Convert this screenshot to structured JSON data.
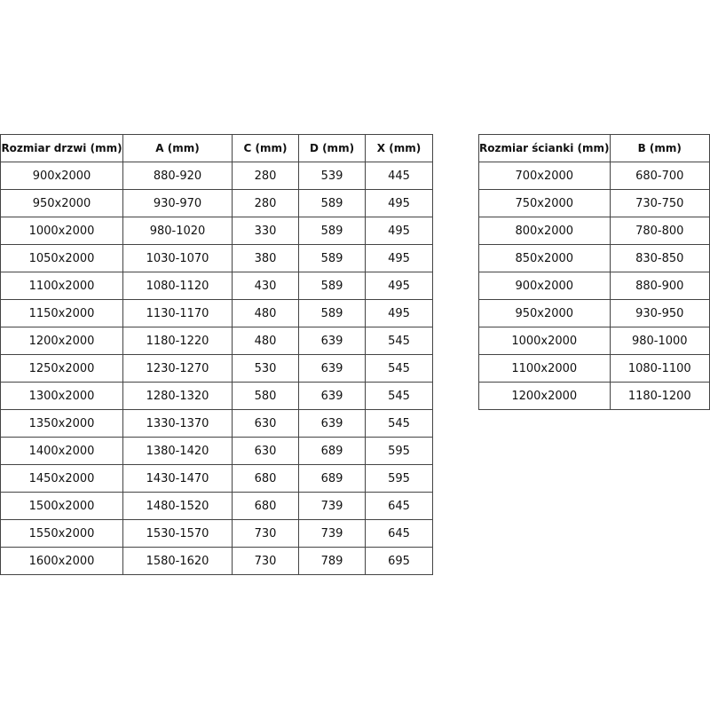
{
  "doors_table": {
    "headers": [
      "Rozmiar drzwi (mm)",
      "A (mm)",
      "C (mm)",
      "D (mm)",
      "X (mm)"
    ],
    "rows": [
      [
        "900x2000",
        "880-920",
        "280",
        "539",
        "445"
      ],
      [
        "950x2000",
        "930-970",
        "280",
        "589",
        "495"
      ],
      [
        "1000x2000",
        "980-1020",
        "330",
        "589",
        "495"
      ],
      [
        "1050x2000",
        "1030-1070",
        "380",
        "589",
        "495"
      ],
      [
        "1100x2000",
        "1080-1120",
        "430",
        "589",
        "495"
      ],
      [
        "1150x2000",
        "1130-1170",
        "480",
        "589",
        "495"
      ],
      [
        "1200x2000",
        "1180-1220",
        "480",
        "639",
        "545"
      ],
      [
        "1250x2000",
        "1230-1270",
        "530",
        "639",
        "545"
      ],
      [
        "1300x2000",
        "1280-1320",
        "580",
        "639",
        "545"
      ],
      [
        "1350x2000",
        "1330-1370",
        "630",
        "639",
        "545"
      ],
      [
        "1400x2000",
        "1380-1420",
        "630",
        "689",
        "595"
      ],
      [
        "1450x2000",
        "1430-1470",
        "680",
        "689",
        "595"
      ],
      [
        "1500x2000",
        "1480-1520",
        "680",
        "739",
        "645"
      ],
      [
        "1550x2000",
        "1530-1570",
        "730",
        "739",
        "645"
      ],
      [
        "1600x2000",
        "1580-1620",
        "730",
        "789",
        "695"
      ]
    ]
  },
  "wall_table": {
    "headers": [
      "Rozmiar ścianki (mm)",
      "B (mm)"
    ],
    "rows": [
      [
        "700x2000",
        "680-700"
      ],
      [
        "750x2000",
        "730-750"
      ],
      [
        "800x2000",
        "780-800"
      ],
      [
        "850x2000",
        "830-850"
      ],
      [
        "900x2000",
        "880-900"
      ],
      [
        "950x2000",
        "930-950"
      ],
      [
        "1000x2000",
        "980-1000"
      ],
      [
        "1100x2000",
        "1080-1100"
      ],
      [
        "1200x2000",
        "1180-1200"
      ]
    ]
  }
}
